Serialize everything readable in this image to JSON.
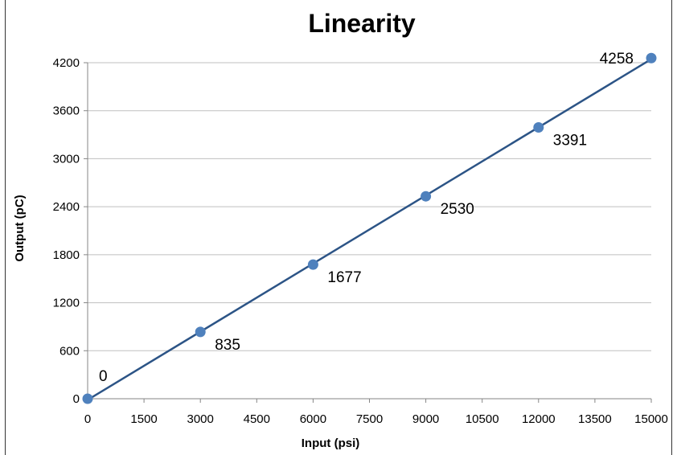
{
  "chart_data": {
    "type": "scatter",
    "title": "Linearity",
    "xlabel": "Input (psi)",
    "ylabel": "Output (pC)",
    "xlim": [
      0,
      15000
    ],
    "ylim": [
      0,
      4200
    ],
    "xticks": [
      "0",
      "1500",
      "3000",
      "4500",
      "6000",
      "7500",
      "9000",
      "10500",
      "12000",
      "13500",
      "15000"
    ],
    "yticks": [
      "0",
      "600",
      "1200",
      "1800",
      "2400",
      "3000",
      "3600",
      "4200"
    ],
    "grid": true,
    "trendline": true,
    "series": [
      {
        "x": [
          0,
          3000,
          6000,
          9000,
          12000,
          15000
        ],
        "y": [
          0,
          835,
          1677,
          2530,
          3391,
          4258
        ],
        "labels": [
          "0",
          "835",
          "1677",
          "2530",
          "3391",
          "4258"
        ]
      }
    ],
    "colors": {
      "marker": "#4f81bd",
      "line": "#2c5486",
      "grid": "#bfbfbf",
      "axis": "#868686"
    }
  }
}
